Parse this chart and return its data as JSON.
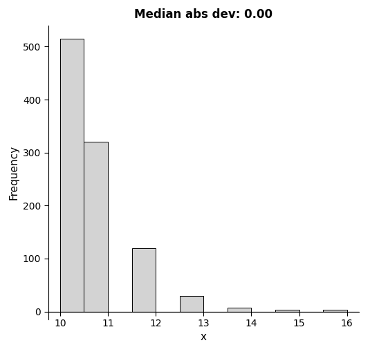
{
  "title": "Median abs dev: 0.00",
  "xlabel": "x",
  "ylabel": "Frequency",
  "bar_color": "#d3d3d3",
  "bar_edgecolor": "#000000",
  "bin_edges": [
    10.0,
    10.5,
    11.0,
    11.5,
    12.0,
    12.5,
    13.0,
    13.5,
    14.0,
    14.5,
    15.0,
    15.5,
    16.0
  ],
  "frequencies": [
    515,
    320,
    0,
    120,
    0,
    30,
    0,
    7,
    0,
    3,
    0,
    3
  ],
  "xlim": [
    9.75,
    16.25
  ],
  "ylim": [
    -15,
    540
  ],
  "yticks": [
    0,
    100,
    200,
    300,
    400,
    500
  ],
  "xticks": [
    10,
    11,
    12,
    13,
    14,
    15,
    16
  ],
  "title_fontsize": 12,
  "label_fontsize": 11,
  "tick_fontsize": 10,
  "background_color": "#ffffff",
  "linewidth": 0.7
}
